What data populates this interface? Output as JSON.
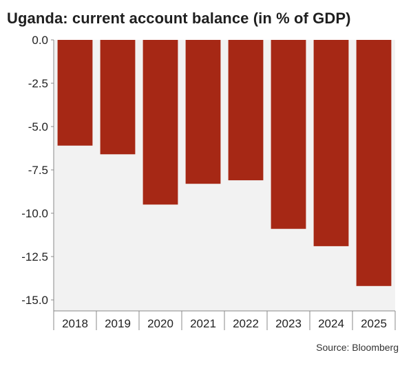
{
  "title": "Uganda: current account balance (in % of GDP)",
  "footer": "Source: Bloomberg",
  "colors": {
    "bar": "#a62815",
    "plot_bg": "#f2f2f2",
    "axis": "#888888"
  },
  "chart_data": {
    "type": "bar",
    "title": "Uganda: current account balance (in % of GDP)",
    "categories": [
      "2018",
      "2019",
      "2020",
      "2021",
      "2022",
      "2023",
      "2024",
      "2025"
    ],
    "values": [
      -6.1,
      -6.6,
      -9.5,
      -8.3,
      -8.1,
      -10.9,
      -11.9,
      -14.2
    ],
    "ylim": [
      -15,
      0
    ],
    "yticks": [
      "0.0",
      "-2.5",
      "-5.0",
      "-7.5",
      "-10.0",
      "-12.5",
      "-15.0"
    ],
    "ytick_values": [
      0,
      -2.5,
      -5,
      -7.5,
      -10,
      -12.5,
      -15
    ],
    "xlabel": "",
    "ylabel": "",
    "grid": false
  }
}
